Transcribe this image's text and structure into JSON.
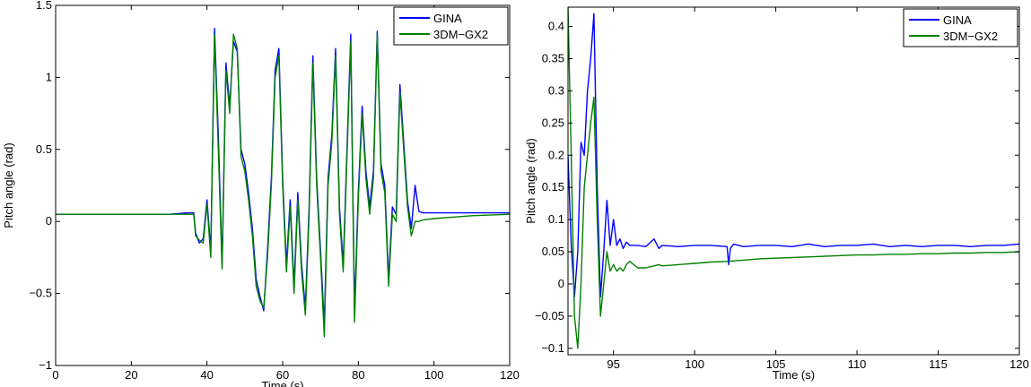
{
  "chart_data": [
    {
      "type": "line",
      "xlabel": "Time (s)",
      "ylabel": "Pitch angle (rad)",
      "xlim": [
        0,
        120
      ],
      "ylim": [
        -1,
        1.5
      ],
      "xticks": [
        0,
        20,
        40,
        60,
        80,
        100,
        120
      ],
      "xtick_labels": [
        "0",
        "20",
        "40",
        "60",
        "80",
        "100",
        "120"
      ],
      "yticks": [
        -1,
        -0.5,
        0,
        0.5,
        1,
        1.5
      ],
      "ytick_labels": [
        "−1",
        "−0.5",
        "0",
        "0.5",
        "1",
        "1.5"
      ],
      "grid": false,
      "legend_position": "top-right",
      "series": [
        {
          "name": "GINA",
          "color": "#0000ff",
          "x": [
            0,
            10,
            20,
            30,
            35,
            36.5,
            37,
            38,
            39,
            40,
            41,
            42,
            43,
            44,
            45,
            46,
            47,
            48,
            49,
            50,
            51,
            52,
            53,
            54,
            55,
            56,
            57,
            58,
            59,
            60,
            61,
            62,
            63,
            64,
            65,
            66,
            67,
            68,
            69,
            70,
            71,
            72,
            73,
            74,
            75,
            76,
            77,
            78,
            79,
            80,
            81,
            82,
            83,
            84,
            85,
            86,
            87,
            88,
            89,
            90,
            91,
            92,
            93,
            94,
            95,
            96,
            97,
            100,
            110,
            120
          ],
          "y": [
            0.05,
            0.05,
            0.05,
            0.05,
            0.06,
            0.06,
            -0.08,
            -0.15,
            -0.12,
            0.15,
            -0.2,
            1.34,
            0.6,
            -0.3,
            1.1,
            0.8,
            1.25,
            1.18,
            0.5,
            0.4,
            0.2,
            -0.05,
            -0.4,
            -0.52,
            -0.62,
            -0.2,
            0.3,
            1.05,
            1.2,
            0.3,
            -0.3,
            0.15,
            -0.45,
            0.2,
            -0.3,
            -0.6,
            0.1,
            1.15,
            0.3,
            -0.2,
            -0.72,
            0.3,
            0.6,
            1.2,
            0.1,
            -0.3,
            0.5,
            1.3,
            -0.62,
            0.2,
            0.8,
            0.35,
            0.1,
            0.35,
            1.32,
            0.4,
            0.25,
            -0.4,
            0.1,
            0.05,
            0.95,
            0.55,
            0.14,
            -0.05,
            0.25,
            0.07,
            0.06,
            0.06,
            0.06,
            0.06
          ]
        },
        {
          "name": "3DM−GX2",
          "color": "#008000",
          "x": [
            0,
            10,
            20,
            30,
            35,
            36.5,
            37,
            38,
            39,
            40,
            41,
            42,
            43,
            44,
            45,
            46,
            47,
            48,
            49,
            50,
            51,
            52,
            53,
            54,
            55,
            56,
            57,
            58,
            59,
            60,
            61,
            62,
            63,
            64,
            65,
            66,
            67,
            68,
            69,
            70,
            71,
            72,
            73,
            74,
            75,
            76,
            77,
            78,
            79,
            80,
            81,
            82,
            83,
            84,
            85,
            86,
            87,
            88,
            89,
            90,
            91,
            92,
            93,
            94,
            95,
            96,
            97,
            100,
            110,
            120
          ],
          "y": [
            0.05,
            0.05,
            0.05,
            0.05,
            0.05,
            0.05,
            -0.1,
            -0.13,
            -0.15,
            0.12,
            -0.25,
            1.3,
            0.5,
            -0.33,
            1.05,
            0.75,
            1.3,
            1.2,
            0.45,
            0.35,
            0.15,
            -0.1,
            -0.45,
            -0.55,
            -0.6,
            -0.25,
            0.25,
            1.0,
            1.15,
            0.25,
            -0.35,
            0.1,
            -0.5,
            0.15,
            -0.35,
            -0.65,
            0.05,
            1.1,
            0.25,
            -0.25,
            -0.8,
            0.25,
            0.55,
            1.15,
            0.05,
            -0.35,
            0.45,
            1.25,
            -0.7,
            0.15,
            0.75,
            0.3,
            0.05,
            0.3,
            1.3,
            0.35,
            0.2,
            -0.45,
            0.05,
            0.0,
            0.9,
            0.5,
            0.1,
            -0.1,
            0.0,
            0.0,
            0.01,
            0.02,
            0.04,
            0.05
          ]
        }
      ]
    },
    {
      "type": "line",
      "xlabel": "Time (s)",
      "ylabel": "Pitch angle (rad)",
      "xlim": [
        92.2,
        120
      ],
      "ylim": [
        -0.11,
        0.43
      ],
      "xticks": [
        95,
        100,
        105,
        110,
        115,
        120
      ],
      "xtick_labels": [
        "95",
        "100",
        "105",
        "110",
        "115",
        "120"
      ],
      "yticks": [
        -0.1,
        -0.05,
        0,
        0.05,
        0.1,
        0.15,
        0.2,
        0.25,
        0.3,
        0.35,
        0.4
      ],
      "ytick_labels": [
        "−0.1",
        "−0.05",
        "0",
        "0.05",
        "0.1",
        "0.15",
        "0.2",
        "0.25",
        "0.3",
        "0.35",
        "0.4"
      ],
      "grid": false,
      "legend_position": "top-right",
      "series": [
        {
          "name": "GINA",
          "color": "#0000ff",
          "x": [
            92.2,
            92.4,
            92.6,
            92.8,
            93.0,
            93.2,
            93.4,
            93.6,
            93.8,
            94.0,
            94.2,
            94.4,
            94.6,
            94.8,
            95.0,
            95.2,
            95.4,
            95.6,
            95.8,
            96.0,
            96.5,
            97.0,
            97.5,
            97.8,
            98.0,
            99.0,
            100.0,
            101.0,
            102.0,
            102.1,
            102.2,
            102.4,
            103.0,
            104.0,
            105.0,
            106.0,
            107.0,
            108.0,
            109.0,
            110.0,
            111.0,
            112.0,
            113.0,
            114.0,
            115.0,
            116.0,
            117.0,
            118.0,
            119.0,
            120.0
          ],
          "y": [
            0.2,
            0.06,
            -0.02,
            0.05,
            0.22,
            0.2,
            0.3,
            0.35,
            0.42,
            0.15,
            -0.02,
            0.05,
            0.13,
            0.06,
            0.1,
            0.06,
            0.07,
            0.055,
            0.065,
            0.06,
            0.06,
            0.058,
            0.07,
            0.055,
            0.06,
            0.058,
            0.06,
            0.06,
            0.058,
            0.03,
            0.055,
            0.062,
            0.058,
            0.06,
            0.06,
            0.058,
            0.062,
            0.058,
            0.06,
            0.06,
            0.062,
            0.058,
            0.06,
            0.058,
            0.06,
            0.06,
            0.058,
            0.06,
            0.06,
            0.062
          ]
        },
        {
          "name": "3DM−GX2",
          "color": "#008000",
          "x": [
            92.2,
            92.4,
            92.6,
            92.8,
            93.0,
            93.2,
            93.4,
            93.6,
            93.8,
            94.0,
            94.2,
            94.4,
            94.6,
            94.8,
            95.0,
            95.2,
            95.4,
            95.6,
            95.8,
            96.0,
            96.5,
            97.0,
            97.5,
            97.8,
            98.0,
            99.0,
            100.0,
            101.0,
            102.0,
            103.0,
            104.0,
            105.0,
            106.0,
            107.0,
            108.0,
            109.0,
            110.0,
            111.0,
            112.0,
            113.0,
            114.0,
            115.0,
            116.0,
            117.0,
            118.0,
            119.0,
            120.0
          ],
          "y": [
            0.43,
            0.2,
            -0.05,
            -0.1,
            0.0,
            0.15,
            0.2,
            0.25,
            0.29,
            0.1,
            -0.05,
            0.0,
            0.05,
            0.02,
            0.03,
            0.02,
            0.025,
            0.02,
            0.03,
            0.035,
            0.025,
            0.025,
            0.028,
            0.03,
            0.028,
            0.03,
            0.032,
            0.034,
            0.035,
            0.037,
            0.039,
            0.04,
            0.041,
            0.042,
            0.043,
            0.044,
            0.045,
            0.045,
            0.046,
            0.046,
            0.047,
            0.047,
            0.048,
            0.048,
            0.049,
            0.049,
            0.05
          ]
        }
      ]
    }
  ]
}
